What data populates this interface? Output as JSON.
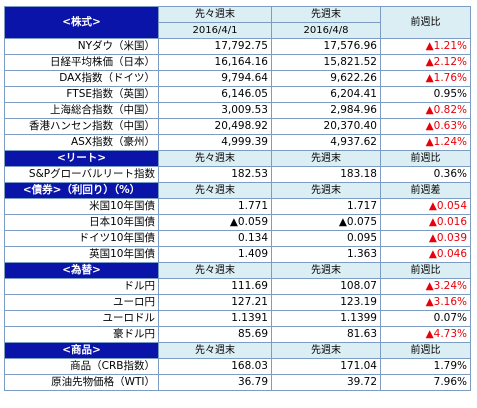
{
  "headers": {
    "prev2": "先々週末",
    "prev1": "先週末",
    "ratio": "前週比",
    "diff": "前週差",
    "date2": "2016/4/1",
    "date1": "2016/4/8"
  },
  "sections": {
    "stocks": "<株式>",
    "reit": "<リート>",
    "bonds": "<債券>（利回り）（%）",
    "fx": "<為替>",
    "commodity": "<商品>"
  },
  "stocks": [
    {
      "name": "NYダウ（米国）",
      "v2": "17,792.75",
      "v1": "17,576.96",
      "chg": "▲1.21%",
      "neg": true
    },
    {
      "name": "日経平均株価（日本）",
      "v2": "16,164.16",
      "v1": "15,821.52",
      "chg": "▲2.12%",
      "neg": true
    },
    {
      "name": "DAX指数（ドイツ）",
      "v2": "9,794.64",
      "v1": "9,622.26",
      "chg": "▲1.76%",
      "neg": true
    },
    {
      "name": "FTSE指数（英国）",
      "v2": "6,146.05",
      "v1": "6,204.41",
      "chg": "0.95%",
      "neg": false
    },
    {
      "name": "上海総合指数（中国）",
      "v2": "3,009.53",
      "v1": "2,984.96",
      "chg": "▲0.82%",
      "neg": true
    },
    {
      "name": "香港ハンセン指数（中国）",
      "v2": "20,498.92",
      "v1": "20,370.40",
      "chg": "▲0.63%",
      "neg": true
    },
    {
      "name": "ASX指数（豪州）",
      "v2": "4,999.39",
      "v1": "4,937.62",
      "chg": "▲1.24%",
      "neg": true
    }
  ],
  "reit": [
    {
      "name": "S&Pグローバルリート指数",
      "v2": "182.53",
      "v1": "183.18",
      "chg": "0.36%",
      "neg": false
    }
  ],
  "bonds": [
    {
      "name": "米国10年国債",
      "v2": "1.771",
      "v1": "1.717",
      "chg": "▲0.054",
      "neg": true
    },
    {
      "name": "日本10年国債",
      "v2": "▲0.059",
      "v1": "▲0.075",
      "chg": "▲0.016",
      "neg": true
    },
    {
      "name": "ドイツ10年国債",
      "v2": "0.134",
      "v1": "0.095",
      "chg": "▲0.039",
      "neg": true
    },
    {
      "name": "英国10年国債",
      "v2": "1.409",
      "v1": "1.363",
      "chg": "▲0.046",
      "neg": true
    }
  ],
  "fx": [
    {
      "name": "ドル円",
      "v2": "111.69",
      "v1": "108.07",
      "chg": "▲3.24%",
      "neg": true
    },
    {
      "name": "ユーロ円",
      "v2": "127.21",
      "v1": "123.19",
      "chg": "▲3.16%",
      "neg": true
    },
    {
      "name": "ユーロドル",
      "v2": "1.1391",
      "v1": "1.1399",
      "chg": "0.07%",
      "neg": false
    },
    {
      "name": "豪ドル円",
      "v2": "85.69",
      "v1": "81.63",
      "chg": "▲4.73%",
      "neg": true
    }
  ],
  "commodity": [
    {
      "name": "商品（CRB指数）",
      "v2": "168.03",
      "v1": "171.04",
      "chg": "1.79%",
      "neg": false
    },
    {
      "name": "原油先物価格（WTI）",
      "v2": "36.79",
      "v1": "39.72",
      "chg": "7.96%",
      "neg": false
    }
  ],
  "colors": {
    "section_bg": "#0a14a8",
    "header_bg": "#dbeef3",
    "border": "#7c9cc3",
    "negative": "#e8000b"
  }
}
